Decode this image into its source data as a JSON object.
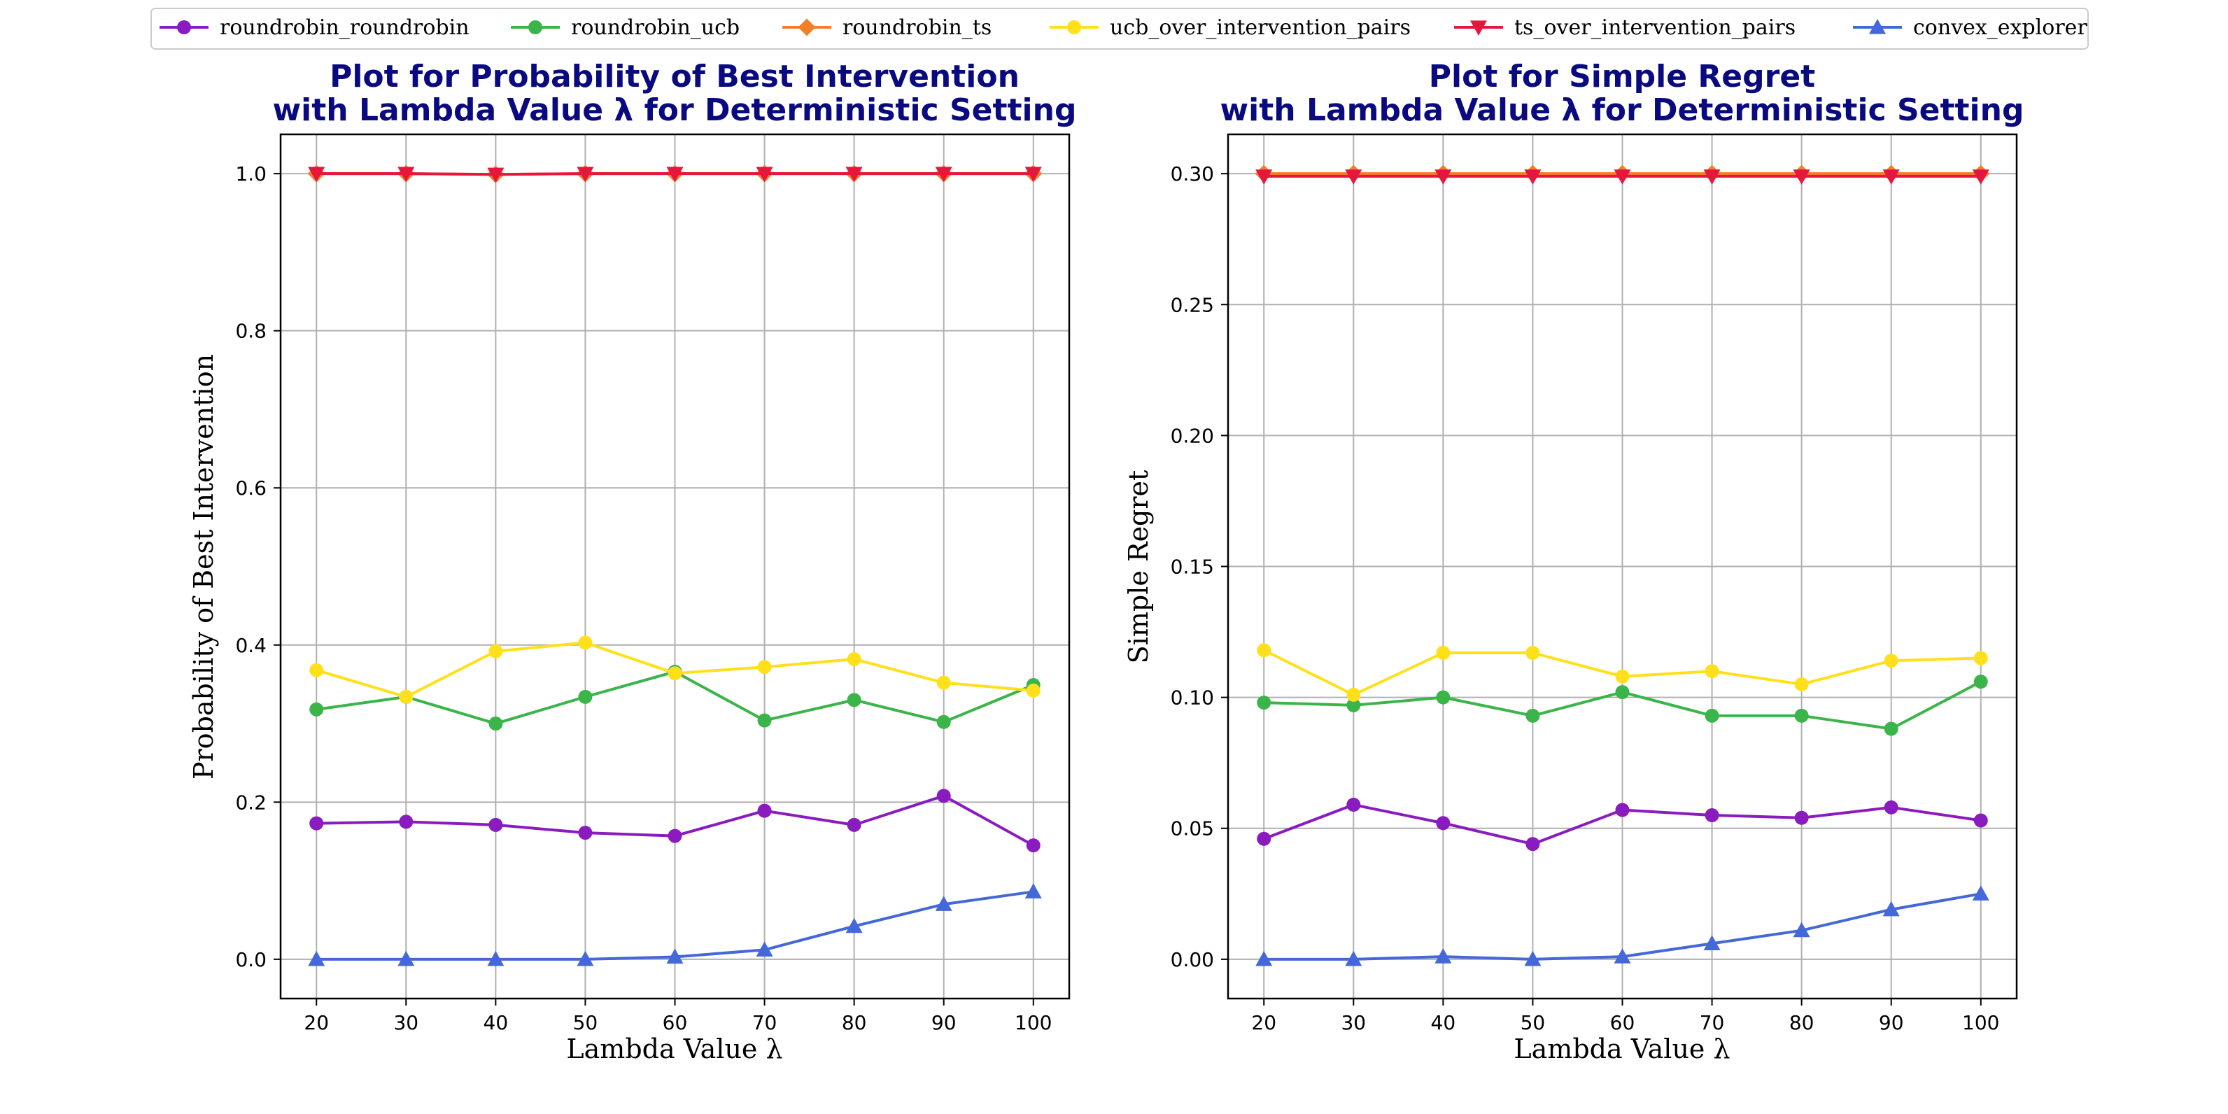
{
  "chart_data": [
    {
      "type": "line",
      "title": [
        "Plot for Probability of Best Intervention",
        "with Lambda Value λ for Deterministic Setting"
      ],
      "xlabel": "Lambda Value λ",
      "ylabel": "Probability of Best Intervention",
      "x": [
        20,
        30,
        40,
        50,
        60,
        70,
        80,
        90,
        100
      ],
      "xlim": [
        16,
        104
      ],
      "ylim": [
        -0.05,
        1.05
      ],
      "yticks": [
        0.0,
        0.2,
        0.4,
        0.6,
        0.8,
        1.0
      ],
      "ytick_labels": [
        "0.0",
        "0.2",
        "0.4",
        "0.6",
        "0.8",
        "1.0"
      ],
      "grid": true,
      "series": [
        {
          "name": "roundrobin_roundrobin",
          "values": [
            0.173,
            0.175,
            0.171,
            0.161,
            0.157,
            0.189,
            0.171,
            0.208,
            0.145
          ]
        },
        {
          "name": "roundrobin_ucb",
          "values": [
            0.318,
            0.334,
            0.3,
            0.334,
            0.366,
            0.304,
            0.33,
            0.302,
            0.349
          ]
        },
        {
          "name": "roundrobin_ts",
          "values": [
            1.0,
            1.0,
            0.999,
            1.0,
            1.0,
            1.0,
            1.0,
            1.0,
            1.0
          ]
        },
        {
          "name": "ucb_over_intervention_pairs",
          "values": [
            0.368,
            0.334,
            0.392,
            0.403,
            0.364,
            0.372,
            0.382,
            0.352,
            0.342
          ]
        },
        {
          "name": "ts_over_intervention_pairs",
          "values": [
            1.0,
            1.0,
            0.999,
            1.0,
            1.0,
            1.0,
            1.0,
            1.0,
            1.0
          ]
        },
        {
          "name": "convex_explorer",
          "values": [
            0.0,
            0.0,
            0.0,
            0.0,
            0.003,
            0.012,
            0.042,
            0.07,
            0.086
          ]
        }
      ]
    },
    {
      "type": "line",
      "title": [
        "Plot for Simple Regret",
        "with Lambda Value λ for Deterministic Setting"
      ],
      "xlabel": "Lambda Value λ",
      "ylabel": "Simple Regret",
      "x": [
        20,
        30,
        40,
        50,
        60,
        70,
        80,
        90,
        100
      ],
      "xlim": [
        16,
        104
      ],
      "ylim": [
        -0.015,
        0.315
      ],
      "yticks": [
        0.0,
        0.05,
        0.1,
        0.15,
        0.2,
        0.25,
        0.3
      ],
      "ytick_labels": [
        "0.00",
        "0.05",
        "0.10",
        "0.15",
        "0.20",
        "0.25",
        "0.30"
      ],
      "grid": true,
      "series": [
        {
          "name": "roundrobin_roundrobin",
          "values": [
            0.046,
            0.059,
            0.052,
            0.044,
            0.057,
            0.055,
            0.054,
            0.058,
            0.053
          ]
        },
        {
          "name": "roundrobin_ucb",
          "values": [
            0.098,
            0.097,
            0.1,
            0.093,
            0.102,
            0.093,
            0.093,
            0.088,
            0.106
          ]
        },
        {
          "name": "roundrobin_ts",
          "values": [
            0.3,
            0.3,
            0.3,
            0.3,
            0.3,
            0.3,
            0.3,
            0.3,
            0.3
          ]
        },
        {
          "name": "ucb_over_intervention_pairs",
          "values": [
            0.118,
            0.101,
            0.117,
            0.117,
            0.108,
            0.11,
            0.105,
            0.114,
            0.115
          ]
        },
        {
          "name": "ts_over_intervention_pairs",
          "values": [
            0.299,
            0.299,
            0.299,
            0.299,
            0.299,
            0.299,
            0.299,
            0.299,
            0.299
          ]
        },
        {
          "name": "convex_explorer",
          "values": [
            0.0,
            0.0,
            0.001,
            0.0,
            0.001,
            0.006,
            0.011,
            0.019,
            0.025
          ]
        }
      ]
    }
  ],
  "legend": {
    "placement": "top-center",
    "entries": [
      {
        "label": "roundrobin_roundrobin",
        "color": "#8a1bbf",
        "marker": "circle"
      },
      {
        "label": "roundrobin_ucb",
        "color": "#3bb44a",
        "marker": "circle"
      },
      {
        "label": "roundrobin_ts",
        "color": "#f47f2a",
        "marker": "diamond"
      },
      {
        "label": "ucb_over_intervention_pairs",
        "color": "#ffe01a",
        "marker": "circle"
      },
      {
        "label": "ts_over_intervention_pairs",
        "color": "#e6173c",
        "marker": "triangle-down"
      },
      {
        "label": "convex_explorer",
        "color": "#4468d8",
        "marker": "triangle-up"
      }
    ]
  },
  "colors": {
    "title": "#0a0a80",
    "grid": "#b0b0b0",
    "axis": "#000000"
  }
}
